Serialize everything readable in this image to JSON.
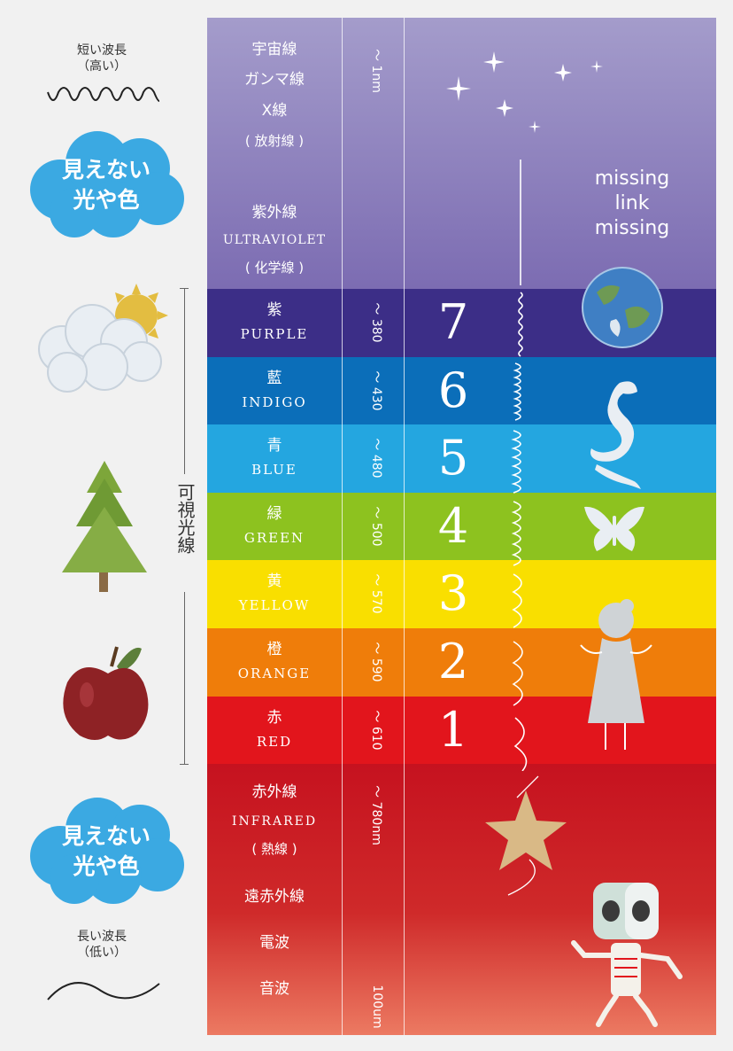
{
  "left": {
    "short_wave": {
      "line1": "短い波長",
      "line2": "（高い）"
    },
    "long_wave": {
      "line1": "長い波長",
      "line2": "（低い）"
    },
    "invisible_top": {
      "line1": "見えない",
      "line2": "光や色"
    },
    "invisible_bottom": {
      "line1": "見えない",
      "line2": "光や色"
    },
    "visible_label": "可視光線"
  },
  "top": {
    "cosmic": "宇宙線",
    "gamma": "ガンマ線",
    "xray": "X線",
    "radiation": "( 放射線 )",
    "uv_jp": "紫外線",
    "uv_en": "ULTRAVIOLET",
    "chem": "( 化学線 )",
    "wavelength": "～ 1nm",
    "missing": [
      "missing",
      "link",
      "missing"
    ]
  },
  "bands": [
    {
      "jp": "紫",
      "en": "PURPLE",
      "wl": "～ 380",
      "num": "7",
      "color": "#3c2e87"
    },
    {
      "jp": "藍",
      "en": "INDIGO",
      "wl": "～ 430",
      "num": "6",
      "color": "#0b6eb9"
    },
    {
      "jp": "青",
      "en": "BLUE",
      "wl": "～ 480",
      "num": "5",
      "color": "#24a6e0"
    },
    {
      "jp": "緑",
      "en": "GREEN",
      "wl": "～ 500",
      "num": "4",
      "color": "#8dc21f"
    },
    {
      "jp": "黄",
      "en": "YELLOW",
      "wl": "～ 570",
      "num": "3",
      "color": "#f9df00"
    },
    {
      "jp": "橙",
      "en": "ORANGE",
      "wl": "～ 590",
      "num": "2",
      "color": "#ef7d0a"
    },
    {
      "jp": "赤",
      "en": "RED",
      "wl": "～ 610",
      "num": "1",
      "color": "#e2151c"
    }
  ],
  "bottom": {
    "ir_jp": "赤外線",
    "ir_en": "INFRARED",
    "heat": "( 熱線 )",
    "far_ir": "遠赤外線",
    "radio": "電波",
    "sound": "音波",
    "wl_top": "～ 780nm",
    "wl_bottom": "100um"
  },
  "colors": {
    "top_start": "#a49ccb",
    "top_end": "#7c6cb2",
    "bottom_start": "#c6121f",
    "bottom_end": "#ec7a62",
    "cloud": "#3ba9e2"
  }
}
